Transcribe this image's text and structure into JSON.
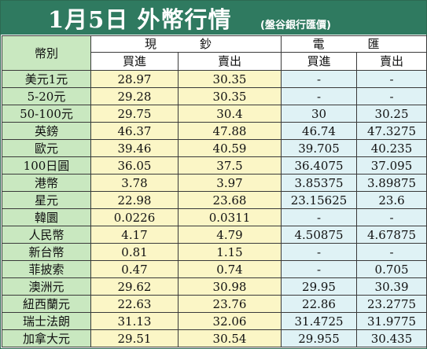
{
  "header": {
    "title": "1月5日 外幣行情",
    "subtitle": "(盤谷銀行匯價)"
  },
  "table": {
    "currency_header": "幣別",
    "cash_header": "現　鈔",
    "tt_header": "電　匯",
    "buy_label": "買進",
    "sell_label": "賣出",
    "rows": [
      {
        "currency": "美元1元",
        "cash_buy": "28.97",
        "cash_sell": "30.35",
        "tt_buy": "-",
        "tt_sell": "-"
      },
      {
        "currency": "5-20元",
        "cash_buy": "29.28",
        "cash_sell": "30.35",
        "tt_buy": "-",
        "tt_sell": "-"
      },
      {
        "currency": "50-100元",
        "cash_buy": "29.75",
        "cash_sell": "30.4",
        "tt_buy": "30",
        "tt_sell": "30.25"
      },
      {
        "currency": "英鎊",
        "cash_buy": "46.37",
        "cash_sell": "47.88",
        "tt_buy": "46.74",
        "tt_sell": "47.3275"
      },
      {
        "currency": "歐元",
        "cash_buy": "39.46",
        "cash_sell": "40.59",
        "tt_buy": "39.705",
        "tt_sell": "40.235"
      },
      {
        "currency": "100日圓",
        "cash_buy": "36.05",
        "cash_sell": "37.5",
        "tt_buy": "36.4075",
        "tt_sell": "37.095"
      },
      {
        "currency": "港幣",
        "cash_buy": "3.78",
        "cash_sell": "3.97",
        "tt_buy": "3.85375",
        "tt_sell": "3.89875"
      },
      {
        "currency": "星元",
        "cash_buy": "22.98",
        "cash_sell": "23.68",
        "tt_buy": "23.15625",
        "tt_sell": "23.6"
      },
      {
        "currency": "韓圜",
        "cash_buy": "0.0226",
        "cash_sell": "0.0311",
        "tt_buy": "-",
        "tt_sell": "-"
      },
      {
        "currency": "人民幣",
        "cash_buy": "4.17",
        "cash_sell": "4.79",
        "tt_buy": "4.50875",
        "tt_sell": "4.67875"
      },
      {
        "currency": "新台幣",
        "cash_buy": "0.81",
        "cash_sell": "1.15",
        "tt_buy": "-",
        "tt_sell": "-"
      },
      {
        "currency": "菲披索",
        "cash_buy": "0.47",
        "cash_sell": "0.74",
        "tt_buy": "-",
        "tt_sell": "0.705"
      },
      {
        "currency": "澳洲元",
        "cash_buy": "29.62",
        "cash_sell": "30.98",
        "tt_buy": "29.95",
        "tt_sell": "30.39"
      },
      {
        "currency": "紐西蘭元",
        "cash_buy": "22.63",
        "cash_sell": "23.76",
        "tt_buy": "22.86",
        "tt_sell": "23.2775"
      },
      {
        "currency": "瑞士法朗",
        "cash_buy": "31.13",
        "cash_sell": "32.06",
        "tt_buy": "31.4725",
        "tt_sell": "31.9775"
      },
      {
        "currency": "加拿大元",
        "cash_buy": "29.51",
        "cash_sell": "30.54",
        "tt_buy": "29.955",
        "tt_sell": "30.435"
      }
    ]
  },
  "colors": {
    "header_bg": "#2f7a60",
    "currency_bg": "#c9e8c0",
    "cash_bg": "#fbf6c6",
    "tt_bg": "#dff2f5"
  }
}
